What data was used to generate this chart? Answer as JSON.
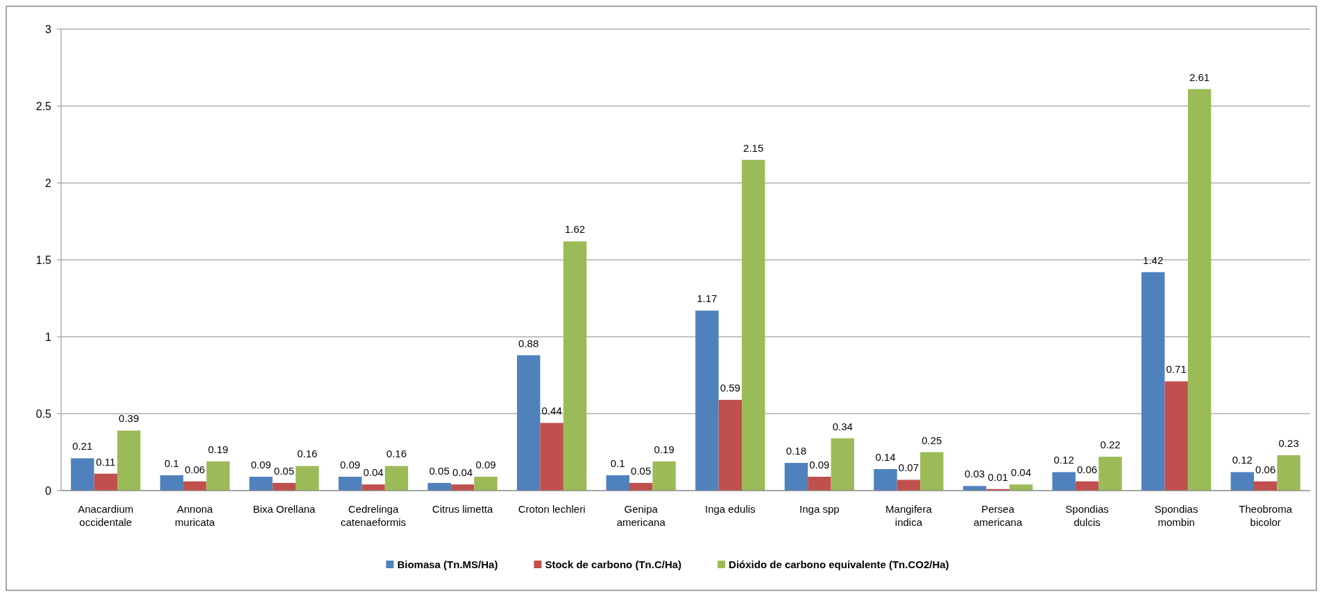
{
  "chart_data": {
    "type": "bar",
    "categories": [
      "Anacardium occidentale",
      "Annona muricata",
      "Bixa Orellana",
      "Cedrelinga catenaeformis",
      "Citrus limetta",
      "Croton lechleri",
      "Genipa americana",
      "Inga edulis",
      "Inga spp",
      "Mangifera indica",
      "Persea americana",
      "Spondias dulcis",
      "Spondias mombin",
      "Theobroma bicolor"
    ],
    "series": [
      {
        "name": "Biomasa (Tn.MS/Ha)",
        "color": "#4f81bd",
        "values": [
          0.21,
          0.1,
          0.09,
          0.09,
          0.05,
          0.88,
          0.1,
          1.17,
          0.18,
          0.14,
          0.03,
          0.12,
          1.42,
          0.12
        ]
      },
      {
        "name": "Stock de carbono (Tn.C/Ha)",
        "color": "#c0504d",
        "values": [
          0.11,
          0.06,
          0.05,
          0.04,
          0.04,
          0.44,
          0.05,
          0.59,
          0.09,
          0.07,
          0.01,
          0.06,
          0.71,
          0.06
        ]
      },
      {
        "name": "Dióxido de carbono equivalente (Tn.CO2/Ha)",
        "color": "#9bbb59",
        "values": [
          0.39,
          0.19,
          0.16,
          0.16,
          0.09,
          1.62,
          0.19,
          2.15,
          0.34,
          0.25,
          0.04,
          0.22,
          2.61,
          0.23
        ]
      }
    ],
    "ylim": [
      0,
      3
    ],
    "yticks": [
      0,
      0.5,
      1,
      1.5,
      2,
      2.5,
      3
    ],
    "grid": "y",
    "data_labels": true,
    "legend": "bottom"
  }
}
